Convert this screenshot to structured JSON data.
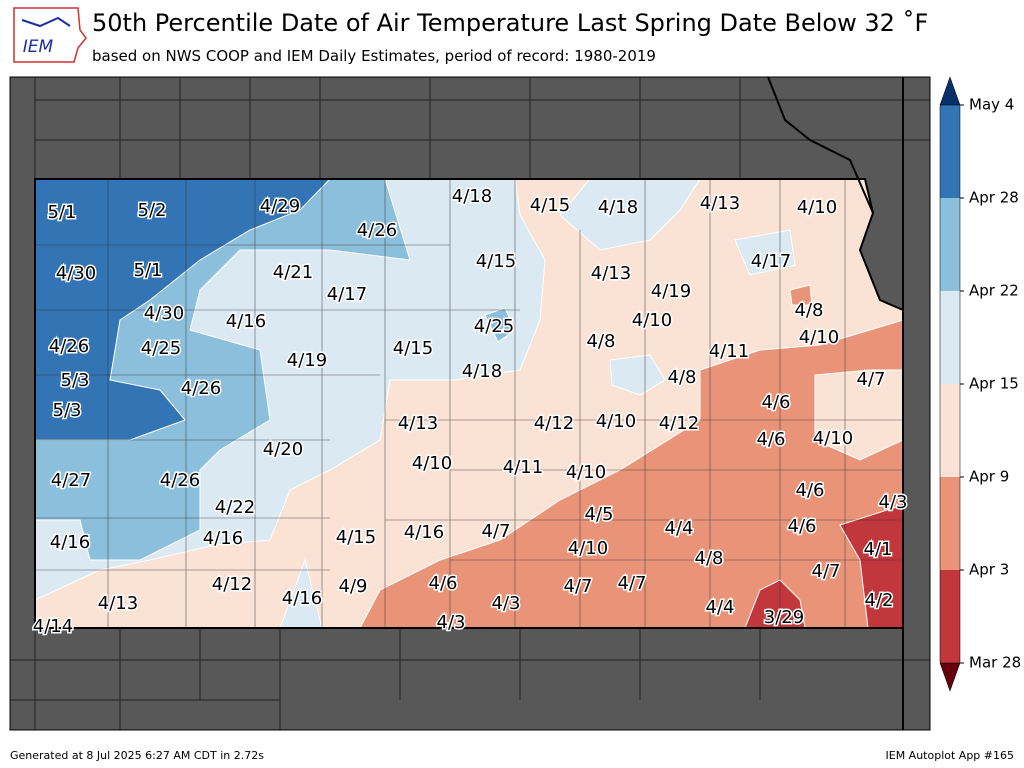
{
  "logo": {
    "text": "IEM"
  },
  "title": "50th Percentile Date of Air Temperature Last Spring Date Below 32 ˚F",
  "subtitle": "based on NWS COOP and IEM Daily Estimates, period of record: 1980-2019",
  "colorbar": {
    "labels": [
      "May 4",
      "Apr 28",
      "Apr 22",
      "Apr 15",
      "Apr 9",
      "Apr 3",
      "Mar 28"
    ],
    "colors": [
      "#3374b5",
      "#8bbfdc",
      "#dbe9f3",
      "#fae2d5",
      "#e99479",
      "#c1373b"
    ],
    "extend_colors": [
      "#08306b",
      "#67000d"
    ]
  },
  "stations": [
    "5/1",
    "5/2",
    "4/29",
    "4/18",
    "4/15",
    "4/18",
    "4/13",
    "4/10",
    "4/26",
    "4/30",
    "5/1",
    "4/21",
    "4/15",
    "4/13",
    "4/17",
    "4/17",
    "4/19",
    "4/30",
    "4/16",
    "4/25",
    "4/10",
    "4/8",
    "4/26",
    "4/25",
    "4/15",
    "4/8",
    "4/11",
    "4/10",
    "4/19",
    "5/3",
    "4/18",
    "4/8",
    "4/7",
    "4/26",
    "5/3",
    "4/6",
    "4/13",
    "4/12",
    "4/10",
    "4/12",
    "4/6",
    "4/10",
    "4/20",
    "4/10",
    "4/11",
    "4/10",
    "4/27",
    "4/26",
    "4/6",
    "4/3",
    "4/22",
    "4/5",
    "4/7",
    "4/16",
    "4/4",
    "4/6",
    "4/16",
    "4/16",
    "4/15",
    "4/10",
    "4/1",
    "4/8",
    "4/7",
    "4/12",
    "4/6",
    "4/7",
    "4/7",
    "4/9",
    "4/16",
    "4/13",
    "4/3",
    "4/2",
    "4/4",
    "3/29",
    "4/3",
    "4/14"
  ],
  "footer": {
    "left": "Generated at 8 Jul 2025 6:27 AM CDT in 2.72s",
    "right": "IEM Autoplot App #165"
  }
}
